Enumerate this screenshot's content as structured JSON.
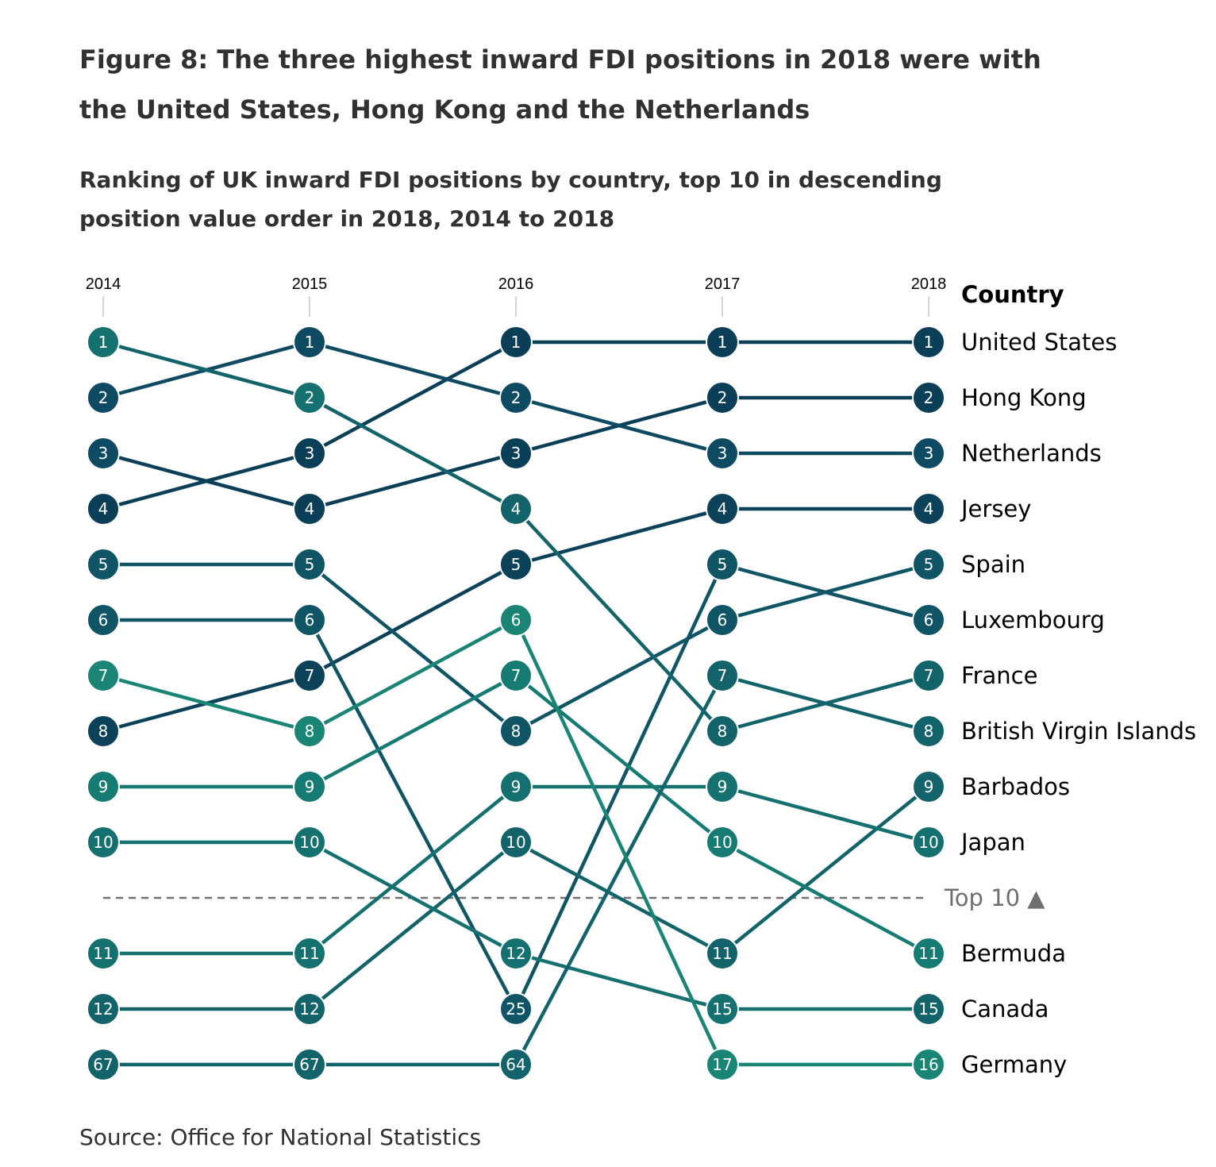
{
  "title": "Figure 8: The three highest inward FDI positions in 2018 were with the United States, Hong Kong and the Netherlands",
  "subtitle": "Ranking of UK inward FDI positions by country, top 10 in descending position value order in 2018, 2014 to 2018",
  "source": "Source: Office for National Statistics",
  "chart_data": {
    "type": "line",
    "chart_kind": "bump chart (rank)",
    "x": [
      "2014",
      "2015",
      "2016",
      "2017",
      "2018"
    ],
    "legend_header": "Country",
    "y_axis_inverted": true,
    "cutoff_label": "Top 10 ▲",
    "cutoff_after_rank": 10,
    "series": [
      {
        "name": "United States",
        "values": [
          4,
          3,
          1,
          1,
          1
        ],
        "color": "#0b3e57"
      },
      {
        "name": "Hong Kong",
        "values": [
          3,
          4,
          3,
          2,
          2
        ],
        "color": "#0b3e57"
      },
      {
        "name": "Netherlands",
        "values": [
          2,
          1,
          2,
          3,
          3
        ],
        "color": "#0e4a61"
      },
      {
        "name": "Jersey",
        "values": [
          8,
          7,
          5,
          4,
          4
        ],
        "color": "#0c4259"
      },
      {
        "name": "Luxembourg",
        "values": [
          6,
          6,
          25,
          5,
          6
        ],
        "color": "#0f5566"
      },
      {
        "name": "Spain",
        "values": [
          5,
          5,
          8,
          6,
          5
        ],
        "color": "#0f5566"
      },
      {
        "name": "France",
        "values": [
          1,
          2,
          4,
          8,
          7
        ],
        "color": "#13636a"
      },
      {
        "name": "Barbados",
        "values": [
          12,
          12,
          10,
          11,
          9
        ],
        "color": "#13636a"
      },
      {
        "name": "Canada",
        "values": [
          10,
          10,
          12,
          15,
          15
        ],
        "color": "#15716f"
      },
      {
        "name": "Japan",
        "values": [
          11,
          11,
          9,
          9,
          10
        ],
        "color": "#15716f"
      },
      {
        "name": "Bermuda",
        "values": [
          9,
          9,
          7,
          10,
          11
        ],
        "color": "#167b72"
      },
      {
        "name": "British Virgin Islands",
        "values": [
          67,
          67,
          64,
          7,
          8
        ],
        "color": "#13636a"
      },
      {
        "name": "Germany",
        "values": [
          7,
          8,
          6,
          17,
          16
        ],
        "color": "#1a8575"
      }
    ],
    "slots": [
      {
        "labels": [
          "1",
          "2",
          "3",
          "4",
          "5",
          "6",
          "7",
          "8",
          "9",
          "10",
          "11",
          "12",
          "67"
        ],
        "colors": [
          "#15716f",
          "#0e4a61",
          "#0e4a61",
          "#0b3e57",
          "#0f5566",
          "#0f5566",
          "#1a8575",
          "#0c4259",
          "#167b72",
          "#15716f",
          "#15716f",
          "#13636a",
          "#13636a"
        ]
      },
      {
        "labels": [
          "1",
          "2",
          "3",
          "4",
          "5",
          "6",
          "7",
          "8",
          "9",
          "10",
          "11",
          "12",
          "67"
        ],
        "colors": [
          "#0e4a61",
          "#15716f",
          "#0b3e57",
          "#0b3e57",
          "#0f5566",
          "#0f5566",
          "#0c4259",
          "#1a8575",
          "#167b72",
          "#15716f",
          "#15716f",
          "#13636a",
          "#13636a"
        ]
      },
      {
        "labels": [
          "1",
          "2",
          "3",
          "4",
          "5",
          "6",
          "7",
          "8",
          "9",
          "10",
          "12",
          "25",
          "64"
        ],
        "colors": [
          "#0b3e57",
          "#0e4a61",
          "#0b3e57",
          "#13636a",
          "#0c4259",
          "#1a8575",
          "#167b72",
          "#0f5566",
          "#15716f",
          "#13636a",
          "#15716f",
          "#0f5566",
          "#13636a"
        ]
      },
      {
        "labels": [
          "1",
          "2",
          "3",
          "4",
          "5",
          "6",
          "7",
          "8",
          "9",
          "10",
          "11",
          "15",
          "17"
        ],
        "colors": [
          "#0b3e57",
          "#0b3e57",
          "#0e4a61",
          "#0c4259",
          "#0f5566",
          "#0f5566",
          "#13636a",
          "#13636a",
          "#15716f",
          "#167b72",
          "#13636a",
          "#15716f",
          "#1a8575"
        ]
      },
      {
        "labels": [
          "1",
          "2",
          "3",
          "4",
          "5",
          "6",
          "7",
          "8",
          "9",
          "10",
          "11",
          "15",
          "16"
        ],
        "colors": [
          "#0b3e57",
          "#0b3e57",
          "#0e4a61",
          "#0c4259",
          "#0f5566",
          "#0f5566",
          "#13636a",
          "#13636a",
          "#13636a",
          "#15716f",
          "#167b72",
          "#13636a",
          "#1a8575"
        ]
      }
    ]
  }
}
